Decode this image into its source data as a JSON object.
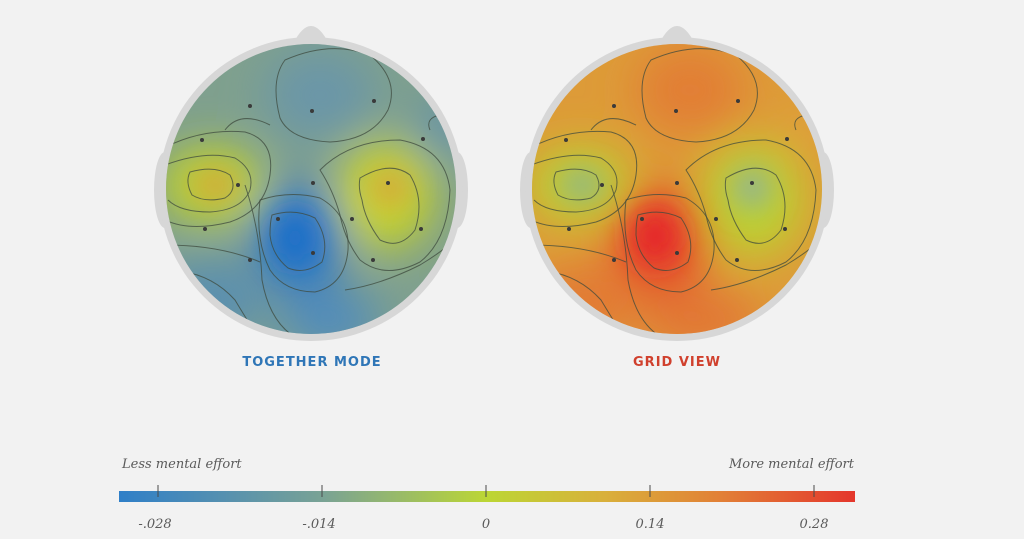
{
  "maps": [
    {
      "id": "together",
      "label": "TOGETHER MODE",
      "label_color": "#2f76b7"
    },
    {
      "id": "grid",
      "label": "GRID VIEW",
      "label_color": "#d0402d"
    }
  ],
  "scale": {
    "left_label": "Less mental effort",
    "right_label": "More mental effort",
    "gradient": [
      "#2f7fc8",
      "#6b9a9c",
      "#9dbb70",
      "#bad632",
      "#d8b23a",
      "#e08a38",
      "#e5622f",
      "#e5382c"
    ],
    "ticks": [
      "-.028",
      "-.014",
      "0",
      "0.14",
      "0.28"
    ]
  },
  "colors": {
    "head": "#d7d7d7",
    "contour": "#3e4a3e",
    "electrode": "#3a3a3a"
  }
}
